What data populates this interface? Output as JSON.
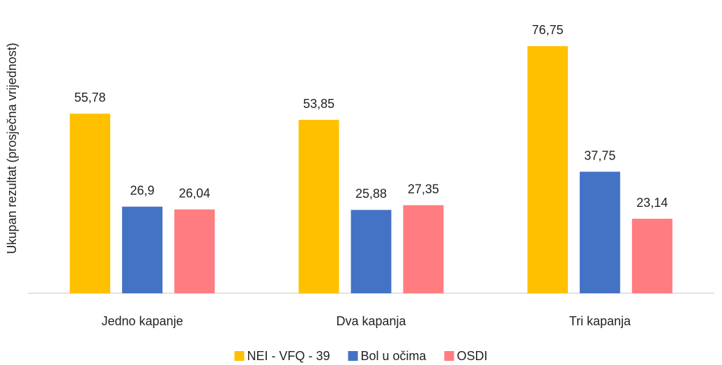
{
  "chart_data": {
    "type": "bar",
    "y_label": "Ukupan rezultat (prosječna vrijednost)",
    "categories": [
      "Jedno kapanje",
      "Dva kapanja",
      "Tri kapanja"
    ],
    "series": [
      {
        "name": "NEI - VFQ - 39",
        "color": "#FFC000",
        "values": [
          55.78,
          53.85,
          76.75
        ],
        "value_labels": [
          "55,78",
          "53,85",
          "76,75"
        ]
      },
      {
        "name": "Bol u očima",
        "color": "#4472C4",
        "values": [
          26.9,
          25.88,
          37.75
        ],
        "value_labels": [
          "26,9",
          "25,88",
          "37,75"
        ]
      },
      {
        "name": "OSDI",
        "color": "#FF7C80",
        "values": [
          26.04,
          27.35,
          23.14
        ],
        "value_labels": [
          "26,04",
          "27,35",
          "23,14"
        ]
      }
    ],
    "ylim": [
      0,
      90
    ],
    "legend": "bottom"
  }
}
